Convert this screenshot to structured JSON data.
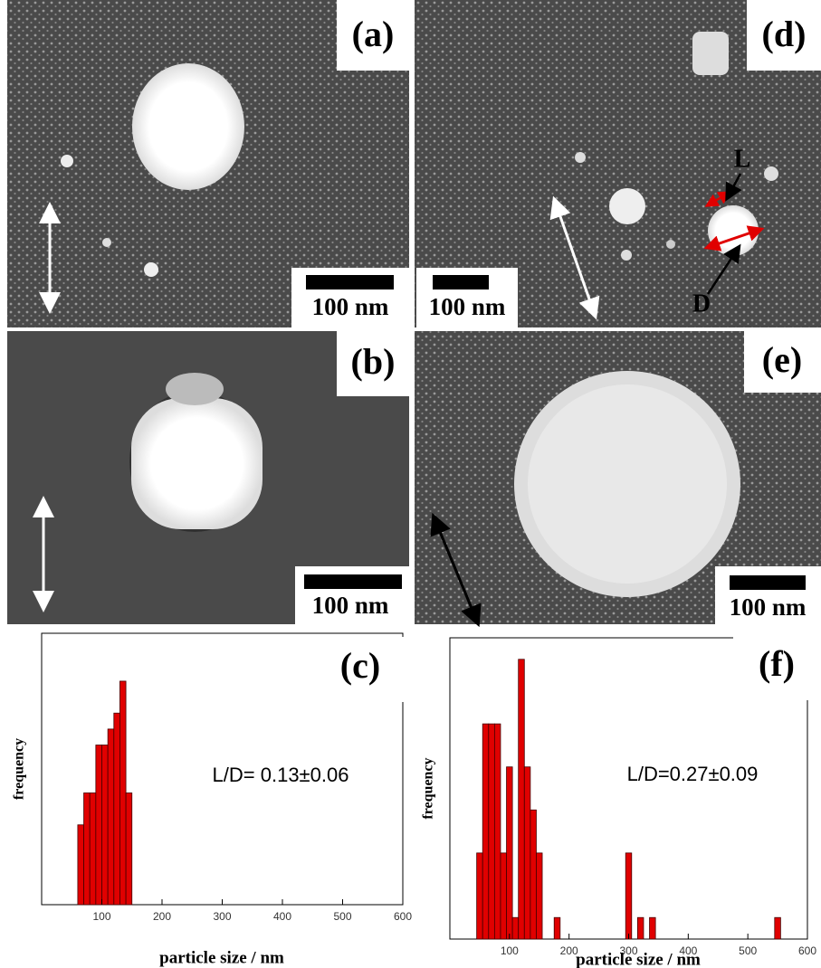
{
  "panels": [
    {
      "label": "(a)",
      "scale_bar": "100 nm"
    },
    {
      "label": "(b)",
      "scale_bar": "100 nm"
    },
    {
      "label": "(d)",
      "scale_bar": "100 nm",
      "markers": [
        "L",
        "D"
      ]
    },
    {
      "label": "(e)",
      "scale_bar": "100 nm"
    }
  ],
  "chart_data": [
    {
      "type": "histogram",
      "title": "(c)",
      "annotation": "L/D= 0.13±0.06",
      "xlabel": "particle size / nm",
      "ylabel": "frequency",
      "color": "#e00000",
      "bins": [
        60,
        70,
        80,
        90,
        100,
        110,
        120,
        130,
        140,
        150
      ],
      "values": [
        5,
        7,
        7,
        10,
        10,
        11,
        12,
        14,
        7
      ],
      "xlim": [
        0,
        600
      ],
      "ylim": [
        0,
        17
      ],
      "xticks": [
        100,
        200,
        300,
        400,
        500,
        600
      ]
    },
    {
      "type": "histogram",
      "title": "(f)",
      "annotation": "L/D=0.27±0.09",
      "xlabel": "particle size / nm",
      "ylabel": "frequency",
      "color": "#e00000",
      "bins": [
        45,
        55,
        65,
        75,
        85,
        95,
        105,
        115,
        125,
        135,
        145,
        155,
        165,
        175,
        185,
        195,
        205,
        215,
        225,
        235,
        245,
        255,
        265,
        275,
        285,
        295,
        305,
        315,
        325,
        335,
        345,
        355,
        365,
        375,
        385,
        395,
        405,
        415,
        425,
        435,
        445,
        455,
        465,
        475,
        485,
        495,
        505,
        515,
        525,
        535,
        545,
        555
      ],
      "values": [
        4,
        10,
        10,
        10,
        4,
        8,
        1,
        13,
        8,
        6,
        4,
        0,
        0,
        1,
        0,
        0,
        0,
        0,
        0,
        0,
        0,
        0,
        0,
        0,
        0,
        4,
        0,
        1,
        0,
        1,
        0,
        0,
        0,
        0,
        0,
        0,
        0,
        0,
        0,
        0,
        0,
        0,
        0,
        0,
        0,
        0,
        0,
        0,
        0,
        0,
        1
      ],
      "xlim": [
        0,
        600
      ],
      "ylim": [
        0,
        14
      ],
      "xticks": [
        100,
        200,
        300,
        400,
        500,
        600
      ]
    }
  ]
}
